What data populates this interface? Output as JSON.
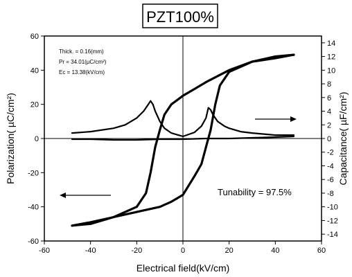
{
  "chart_data": {
    "type": "line",
    "title": "PZT100%",
    "xlabel": "Electrical field(kV/cm)",
    "ylabel": "Polarization( µC/cm²)",
    "y2label": "Capacitance( µF/cm²)",
    "xlim": [
      -60,
      60
    ],
    "ylim": [
      -60,
      60
    ],
    "y2lim": [
      -15,
      15
    ],
    "grid": false,
    "x_ticks": [
      -60,
      -40,
      -20,
      0,
      20,
      40,
      60
    ],
    "y_ticks": [
      -60,
      -40,
      -20,
      0,
      20,
      40,
      60
    ],
    "y2_ticks": [
      -14,
      -12,
      -10,
      -8,
      -6,
      -4,
      -2,
      0,
      2,
      4,
      6,
      8,
      10,
      12,
      14
    ],
    "annotations": {
      "thick": "Thick. = 0.16(mm)",
      "pr": "Pr = 34.01(µC/cm²)",
      "ec": "Ec = 13.38(kV/cm)",
      "tunability": "Tunability = 97.5%"
    },
    "series": [
      {
        "axis": "left",
        "x": [
          -48,
          -40,
          -30,
          -20,
          -16,
          -14,
          -12,
          -10,
          -8,
          -5,
          0,
          5,
          10,
          20,
          30,
          40,
          48
        ],
        "y": [
          -51,
          -50,
          -46,
          -40,
          -32,
          -20,
          -5,
          5,
          14,
          20,
          25,
          29,
          33,
          40,
          45,
          48,
          49
        ]
      },
      {
        "axis": "left",
        "x": [
          48,
          40,
          30,
          20,
          16,
          14,
          12,
          10,
          8,
          5,
          0,
          -5,
          -10,
          -20,
          -30,
          -40,
          -48
        ],
        "y": [
          49,
          47,
          45,
          39,
          31,
          20,
          5,
          -5,
          -15,
          -22,
          -33,
          -37,
          -40,
          -43,
          -46,
          -49,
          -51
        ]
      },
      {
        "axis": "right",
        "x": [
          -48,
          -40,
          -30,
          -25,
          -20,
          -17,
          -15,
          -14,
          -13,
          -12,
          -10,
          -8,
          -5,
          0,
          5,
          8,
          10,
          11,
          12,
          13,
          15,
          18,
          20,
          25,
          30,
          40,
          48
        ],
        "y": [
          0.8,
          1.0,
          1.5,
          2.0,
          3.0,
          4.0,
          5.0,
          5.5,
          5.0,
          4.0,
          2.5,
          1.5,
          0.8,
          0.3,
          0.9,
          1.8,
          3.0,
          4.5,
          4.2,
          3.5,
          2.5,
          1.8,
          1.5,
          1.0,
          0.8,
          0.5,
          0.5
        ]
      },
      {
        "axis": "right",
        "x": [
          48,
          40,
          30,
          20,
          10,
          0,
          -10,
          -20,
          -30,
          -40,
          -48
        ],
        "y": [
          0.3,
          0.2,
          0.1,
          0.0,
          0.0,
          -0.1,
          -0.1,
          -0.2,
          -0.2,
          -0.1,
          -0.1
        ]
      }
    ]
  }
}
